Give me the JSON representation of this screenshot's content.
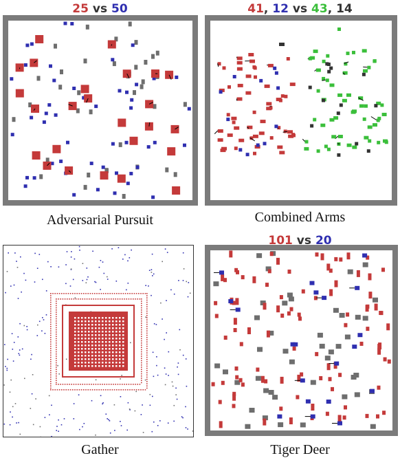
{
  "colors": {
    "red": "#c43a3a",
    "blue": "#2f2fb0",
    "gray": "#6e6e6e",
    "green": "#3bbf3b",
    "dark": "#333333",
    "frame": "#7b7b7b"
  },
  "panels": [
    {
      "caption": "Adversarial Pursuit",
      "score": [
        {
          "text": "25",
          "color": "red"
        },
        {
          "text": " vs ",
          "color": "dark"
        },
        {
          "text": "50",
          "color": "blue"
        }
      ]
    },
    {
      "caption": "Combined Arms",
      "score": [
        {
          "text": "41",
          "color": "red"
        },
        {
          "text": ", ",
          "color": "dark"
        },
        {
          "text": "12",
          "color": "blue"
        },
        {
          "text": " vs ",
          "color": "dark"
        },
        {
          "text": "43",
          "color": "green"
        },
        {
          "text": ", ",
          "color": "dark"
        },
        {
          "text": "14",
          "color": "dark"
        }
      ]
    },
    {
      "caption": "Gather",
      "score": []
    },
    {
      "caption": "Tiger Deer",
      "score": [
        {
          "text": "101",
          "color": "red"
        },
        {
          "text": " vs ",
          "color": "dark"
        },
        {
          "text": "20",
          "color": "blue"
        }
      ]
    }
  ]
}
